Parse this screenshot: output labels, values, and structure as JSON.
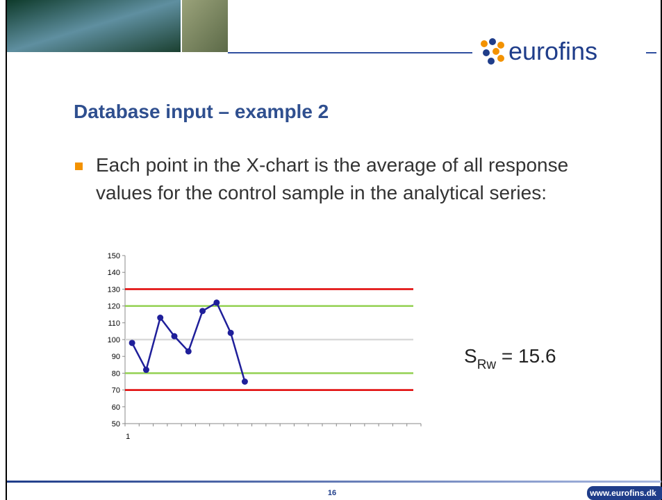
{
  "header": {
    "logo": "eurofins"
  },
  "title": "Database input – example 2",
  "bullet": "Each point in the X-chart is the average of all response values for the control sample in the analytical series:",
  "chart_data": {
    "type": "line",
    "categories": [
      "1",
      null,
      null,
      null,
      null,
      null,
      null,
      null,
      null,
      null,
      null,
      null,
      null,
      null,
      null,
      null,
      null,
      null,
      null,
      null,
      null
    ],
    "series": [
      {
        "color": "#1f1f9a",
        "values": [
          98,
          82,
          113,
          102,
          93,
          117,
          122,
          104,
          75,
          null,
          null,
          null,
          null,
          null,
          null,
          null,
          null,
          null,
          null,
          null,
          null
        ]
      }
    ],
    "reference_lines": [
      {
        "value": 130,
        "color": "#e00000"
      },
      {
        "value": 120,
        "color": "#92d050"
      },
      {
        "value": 100,
        "color": "#d9d9d9"
      },
      {
        "value": 80,
        "color": "#92d050"
      },
      {
        "value": 70,
        "color": "#e00000"
      }
    ],
    "ylim": [
      50,
      150
    ],
    "yticks": [
      50,
      60,
      70,
      80,
      90,
      100,
      110,
      120,
      130,
      140,
      150
    ]
  },
  "formula": {
    "symbol": "S",
    "subscript": "Rw",
    "text": " = 15.6"
  },
  "footer": {
    "page": "16",
    "url": "www.eurofins.dk"
  }
}
